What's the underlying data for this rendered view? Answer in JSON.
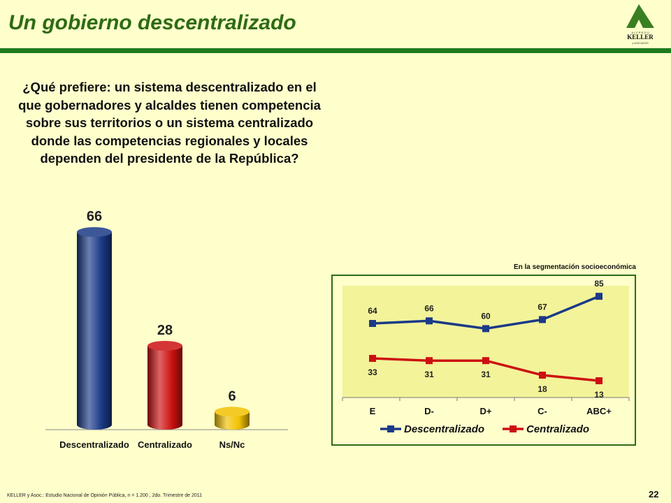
{
  "header": {
    "title": "Un gobierno descentralizado",
    "logo_top": "A L F R E D O",
    "logo_name": "KELLER",
    "logo_bottom": "y ASOCIADOS"
  },
  "question": "¿Qué prefiere: un sistema descentralizado en el que gobernadores y alcaldes tienen competencia sobre sus territorios o un sistema centralizado donde las competencias regionales y locales dependen del presidente de la República?",
  "segment_caption": "En la segmentación socioeconómica",
  "footer": {
    "source": "KELLER y Asoc.: Estudio Nacional de Opinión Pública, n = 1.200 , 2do. Trimestre de 2011",
    "page_number": "22"
  },
  "colors": {
    "title": "#2E6B13",
    "rule": "#1F7A1F",
    "blue": "#1B3A87",
    "red": "#CC1111",
    "gold": "#F2C200"
  },
  "chart_data": [
    {
      "type": "bar",
      "categories": [
        "Descentralizado",
        "Centralizado",
        "Ns/Nc"
      ],
      "values": [
        66,
        28,
        6
      ],
      "colors": [
        "#1B3A87",
        "#CC1111",
        "#F2C200"
      ],
      "ylim": [
        0,
        70
      ]
    },
    {
      "type": "line",
      "categories": [
        "E",
        "D-",
        "D+",
        "C-",
        "ABC+"
      ],
      "series": [
        {
          "name": "Descentralizado",
          "values": [
            64,
            66,
            60,
            67,
            85
          ],
          "color": "#1B3A87"
        },
        {
          "name": "Centralizado",
          "values": [
            33,
            31,
            31,
            18,
            13
          ],
          "color": "#CC1111"
        }
      ],
      "legend": "bottom"
    }
  ]
}
